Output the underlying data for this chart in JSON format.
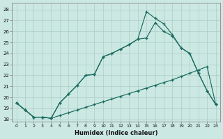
{
  "xlabel": "Humidex (Indice chaleur)",
  "bg_color": "#cce8e2",
  "grid_color": "#aacfc8",
  "line_color": "#1a6b60",
  "xlim": [
    -0.5,
    23.5
  ],
  "ylim": [
    17.8,
    28.6
  ],
  "yticks": [
    18,
    19,
    20,
    21,
    22,
    23,
    24,
    25,
    26,
    27,
    28
  ],
  "xticks": [
    0,
    1,
    2,
    3,
    4,
    5,
    6,
    7,
    8,
    9,
    10,
    11,
    12,
    13,
    14,
    15,
    16,
    17,
    18,
    19,
    20,
    21,
    22,
    23
  ],
  "line1": {
    "x": [
      0,
      1,
      2,
      3,
      4,
      5,
      6,
      7,
      8,
      9,
      10,
      11,
      12,
      13,
      14,
      15,
      16,
      17,
      18,
      19,
      20,
      21,
      22,
      23
    ],
    "y": [
      19.5,
      18.85,
      18.2,
      18.2,
      18.1,
      18.35,
      18.6,
      18.85,
      19.1,
      19.35,
      19.6,
      19.85,
      20.1,
      20.35,
      20.6,
      20.85,
      21.1,
      21.35,
      21.6,
      21.9,
      22.2,
      22.5,
      22.8,
      19.35
    ]
  },
  "line2": {
    "x": [
      0,
      1,
      2,
      3,
      4,
      5,
      6,
      7,
      8,
      9,
      10,
      11,
      12,
      13,
      14,
      15,
      16,
      17,
      18,
      19,
      20,
      21,
      22,
      23
    ],
    "y": [
      19.5,
      18.85,
      18.2,
      18.2,
      18.1,
      19.5,
      20.3,
      21.1,
      22.0,
      22.1,
      23.7,
      24.0,
      24.4,
      24.8,
      25.3,
      25.4,
      26.8,
      26.0,
      25.6,
      24.5,
      24.0,
      22.2,
      20.6,
      19.35
    ]
  },
  "line3": {
    "x": [
      0,
      1,
      2,
      3,
      4,
      5,
      6,
      7,
      8,
      9,
      10,
      11,
      12,
      13,
      14,
      15,
      16,
      17,
      18,
      19,
      20,
      21,
      22,
      23
    ],
    "y": [
      19.5,
      18.85,
      18.2,
      18.2,
      18.1,
      19.5,
      20.3,
      21.1,
      22.0,
      22.1,
      23.7,
      24.0,
      24.4,
      24.8,
      25.3,
      27.8,
      27.2,
      26.7,
      25.7,
      24.5,
      24.0,
      22.2,
      20.6,
      19.35
    ]
  }
}
